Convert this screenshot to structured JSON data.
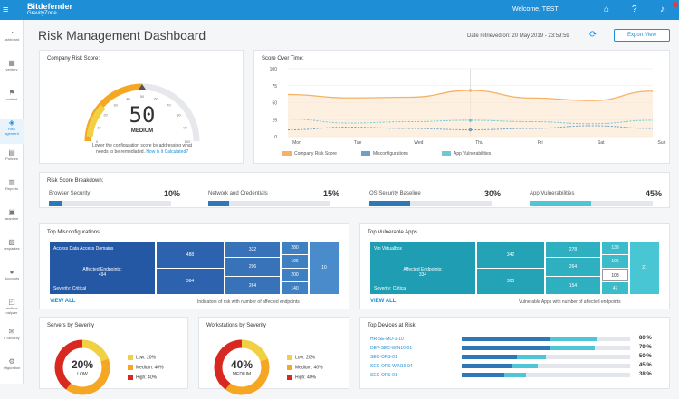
{
  "topbar": {
    "brand": "Bitdefender",
    "brand_sub": "GravityZone",
    "welcome": "Welcome, TEST",
    "menu_icon": "menu-icon",
    "icons": [
      "home-icon",
      "help-icon",
      "bell-icon"
    ]
  },
  "sidebar": {
    "items": [
      {
        "label": "ashboard",
        "icon": "dashboard-icon"
      },
      {
        "label": "ventory",
        "icon": "inventory-icon"
      },
      {
        "label": "ncident",
        "icon": "incident-icon"
      },
      {
        "label": "Risk\nagement",
        "icon": "risk-icon",
        "active": true
      },
      {
        "label": "Policies",
        "icon": "policies-icon"
      },
      {
        "label": "Reports",
        "icon": "reports-icon"
      },
      {
        "label": "arantine",
        "icon": "quarantine-icon"
      },
      {
        "label": "ompanies",
        "icon": "companies-icon"
      },
      {
        "label": "Accounts",
        "icon": "accounts-icon"
      },
      {
        "label": "andbox\nnalyzer",
        "icon": "sandbox-icon"
      },
      {
        "label": "il Security",
        "icon": "mail-icon"
      },
      {
        "label": "nfiguration",
        "icon": "config-icon"
      }
    ]
  },
  "page": {
    "title": "Risk Management Dashboard",
    "date": "Date retrieved on: 20 May 2019 - 23:59:59",
    "export": "Export View"
  },
  "company_risk": {
    "title": "Company Risk Score:",
    "score": "50",
    "level": "MEDIUM",
    "note_line1": "Lower the configuration score by addressing what",
    "note_line2": "needs to be remediated.",
    "link": "How is it Calculated?",
    "gauge_value": 50,
    "gauge_ticks": [
      "0",
      "10",
      "20",
      "30",
      "40",
      "50",
      "60",
      "70",
      "80",
      "90",
      "100"
    ]
  },
  "score_time": {
    "title": "Score Over Time:",
    "legend": [
      "Company Risk Score",
      "Misconfigurations",
      "App Vulnerabilities"
    ]
  },
  "chart_data": {
    "type": "line",
    "x": [
      "Mon",
      "Tue",
      "Wed",
      "Thu",
      "Fri",
      "Sat",
      "Sun"
    ],
    "ylim": [
      0,
      100
    ],
    "yticks": [
      "100",
      "75",
      "50",
      "25",
      "0"
    ],
    "series": [
      {
        "name": "Company Risk Score",
        "color": "#f5b266",
        "values": [
          62,
          57,
          58,
          68,
          57,
          53,
          67
        ]
      },
      {
        "name": "Misconfigurations",
        "color": "#6f9fc8",
        "values": [
          10,
          14,
          12,
          10,
          12,
          16,
          12
        ]
      },
      {
        "name": "App Vulnerabilities",
        "color": "#6fc9d5",
        "values": [
          26,
          20,
          22,
          24,
          22,
          19,
          24
        ]
      }
    ]
  },
  "breakdown": {
    "title": "Risk Score Breakdown:",
    "items": [
      {
        "label": "Browser Security",
        "pct": "10%",
        "value": 10,
        "color": "#2e78b8"
      },
      {
        "label": "Network and Credentials",
        "pct": "15%",
        "value": 15,
        "color": "#2e78b8"
      },
      {
        "label": "OS Security Baseline",
        "pct": "30%",
        "value": 30,
        "color": "#2e78b8"
      },
      {
        "label": "App Vulnerabilities",
        "pct": "45%",
        "value": 45,
        "color": "#4ec6d8"
      }
    ]
  },
  "top_misconfig": {
    "title": "Top Misconfigurations",
    "main_label": "Access Data Access Domains",
    "affected_label": "Affected Endpoints:",
    "affected": "494",
    "severity": "Severity: Critical",
    "tiles": [
      "488",
      "364",
      "332",
      "296",
      "264",
      "280",
      "196",
      "200",
      "140",
      "10"
    ],
    "view_all": "VIEW ALL",
    "caption": "Indicators of risk with number of affected endpoints"
  },
  "top_apps": {
    "title": "Top Vulnerable Apps",
    "main_label": "Vm Virtualbox",
    "affected_label": "Affected Endpoints:",
    "affected": "334",
    "severity": "Severity: Critical",
    "tiles": [
      "342",
      "300",
      "278",
      "264",
      "154",
      "138",
      "106",
      "108",
      "47",
      "21"
    ],
    "view_all": "VIEW ALL",
    "caption": "Vulnerable Apps with number of affected endpoints"
  },
  "servers": {
    "title": "Servers by Severity",
    "pct": "20%",
    "level": "LOW",
    "legend": [
      "Low: 20%",
      "Medium: 40%",
      "High: 40%"
    ],
    "values": [
      20,
      40,
      40
    ]
  },
  "workstations": {
    "title": "Workstations by Severity",
    "pct": "40%",
    "level": "MEDIUM",
    "legend": [
      "Low: 20%",
      "Medium: 40%",
      "High: 40%"
    ],
    "values": [
      20,
      40,
      40
    ]
  },
  "devices": {
    "title": "Top Devices at Risk",
    "items": [
      {
        "name": "HR-SE-MD-1-10",
        "pct": "80 %",
        "value": 80
      },
      {
        "name": "DEV-SEC-WIN10-01",
        "pct": "79 %",
        "value": 79
      },
      {
        "name": "SEC-OPS-01",
        "pct": "50 %",
        "value": 50
      },
      {
        "name": "SEC-OPS-WIN10-04",
        "pct": "45 %",
        "value": 45
      },
      {
        "name": "SEC-OPS-01",
        "pct": "38 %",
        "value": 38
      }
    ]
  },
  "colors": {
    "accent": "#1e8fd6",
    "orange": "#f5a623",
    "green_low": "#f2d044",
    "red_high": "#d9281f"
  }
}
